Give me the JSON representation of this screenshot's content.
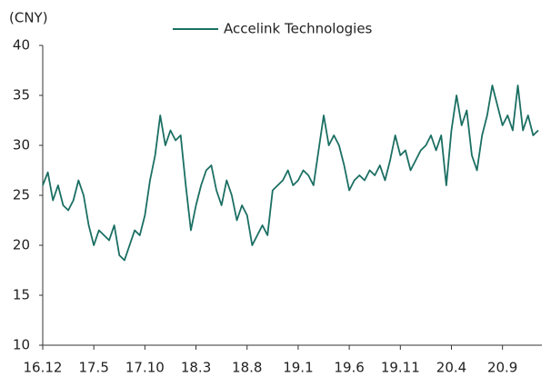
{
  "chart_data": {
    "type": "line",
    "y_label": "(CNY)",
    "categories": [
      "16.12",
      null,
      null,
      null,
      null,
      null,
      null,
      null,
      null,
      null,
      "17.5",
      null,
      null,
      null,
      null,
      null,
      null,
      null,
      null,
      null,
      "17.10",
      null,
      null,
      null,
      null,
      null,
      null,
      null,
      null,
      null,
      "18.3",
      null,
      null,
      null,
      null,
      null,
      null,
      null,
      null,
      null,
      "18.8",
      null,
      null,
      null,
      null,
      null,
      null,
      null,
      null,
      null,
      "19.1",
      null,
      null,
      null,
      null,
      null,
      null,
      null,
      null,
      null,
      "19.6",
      null,
      null,
      null,
      null,
      null,
      null,
      null,
      null,
      null,
      "19.11",
      null,
      null,
      null,
      null,
      null,
      null,
      null,
      null,
      null,
      "20.4",
      null,
      null,
      null,
      null,
      null,
      null,
      null,
      null,
      null,
      "20.9",
      null,
      null,
      null,
      null,
      null,
      null,
      null
    ],
    "series": [
      {
        "name": "Accelink Technologies",
        "color": "#1b6f63",
        "values": [
          26,
          27.3,
          24.5,
          26,
          24,
          23.5,
          24.5,
          26.5,
          25,
          22,
          20,
          21.5,
          21,
          20.5,
          22,
          19,
          18.5,
          20,
          21.5,
          21,
          23,
          26.5,
          29,
          33,
          30,
          31.5,
          30.5,
          31,
          26,
          21.5,
          24,
          26,
          27.5,
          28,
          25.5,
          24,
          26.5,
          25,
          22.5,
          24,
          23,
          20,
          21,
          22,
          21,
          25.5,
          26,
          26.5,
          27.5,
          26,
          26.5,
          27.5,
          27,
          26,
          29.5,
          33,
          30,
          31,
          30,
          28,
          25.5,
          26.5,
          27,
          26.5,
          27.5,
          27,
          28,
          26.5,
          28.5,
          31,
          29,
          29.5,
          27.5,
          28.5,
          29.5,
          30,
          31,
          29.5,
          31,
          26,
          31.5,
          35,
          32,
          33.5,
          29,
          27.5,
          31,
          33,
          36,
          34,
          32,
          33,
          31.5,
          36,
          31.5,
          33,
          31,
          31.5
        ]
      }
    ],
    "ylim": [
      10,
      40
    ],
    "yticks": [
      10,
      15,
      20,
      25,
      30,
      35,
      40
    ],
    "legend": "top"
  }
}
